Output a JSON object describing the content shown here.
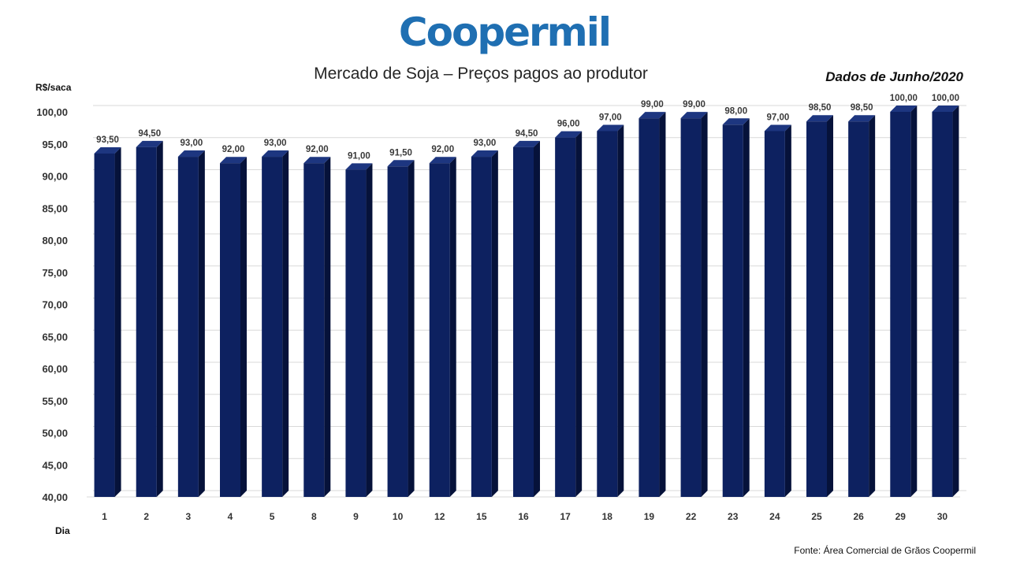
{
  "header": {
    "logo": "Coopermil",
    "title": "Mercado de Soja – Preços pagos ao produtor",
    "subtitle": "Dados de Junho/2020"
  },
  "footer": {
    "source": "Fonte: Área Comercial de Grãos Coopermil"
  },
  "colors": {
    "bar_front": "#0d2160",
    "bar_side": "#06123a",
    "bar_top": "#1d3680",
    "logo": "#1f6fb2",
    "gridline": "#d9d9d9"
  },
  "chart_data": {
    "type": "bar",
    "title": "Mercado de Soja – Preços pagos ao produtor",
    "xlabel": "Dia",
    "ylabel": "R$/saca",
    "ylim": [
      40,
      100
    ],
    "ytick_step": 5,
    "ytick_labels": [
      "40,00",
      "45,00",
      "50,00",
      "55,00",
      "60,00",
      "65,00",
      "70,00",
      "75,00",
      "80,00",
      "85,00",
      "90,00",
      "95,00",
      "100,00"
    ],
    "grid": true,
    "categories": [
      "1",
      "2",
      "3",
      "4",
      "5",
      "8",
      "9",
      "10",
      "12",
      "15",
      "16",
      "17",
      "18",
      "19",
      "22",
      "23",
      "24",
      "25",
      "26",
      "29",
      "30"
    ],
    "values": [
      93.5,
      94.5,
      93.0,
      92.0,
      93.0,
      92.0,
      91.0,
      91.5,
      92.0,
      93.0,
      94.5,
      96.0,
      97.0,
      99.0,
      99.0,
      98.0,
      97.0,
      98.5,
      98.5,
      100.0,
      100.0
    ],
    "data_labels": [
      "93,50",
      "94,50",
      "93,00",
      "92,00",
      "93,00",
      "92,00",
      "91,00",
      "91,50",
      "92,00",
      "93,00",
      "94,50",
      "96,00",
      "97,00",
      "99,00",
      "99,00",
      "98,00",
      "97,00",
      "98,50",
      "98,50",
      "100,00",
      "100,00"
    ]
  }
}
